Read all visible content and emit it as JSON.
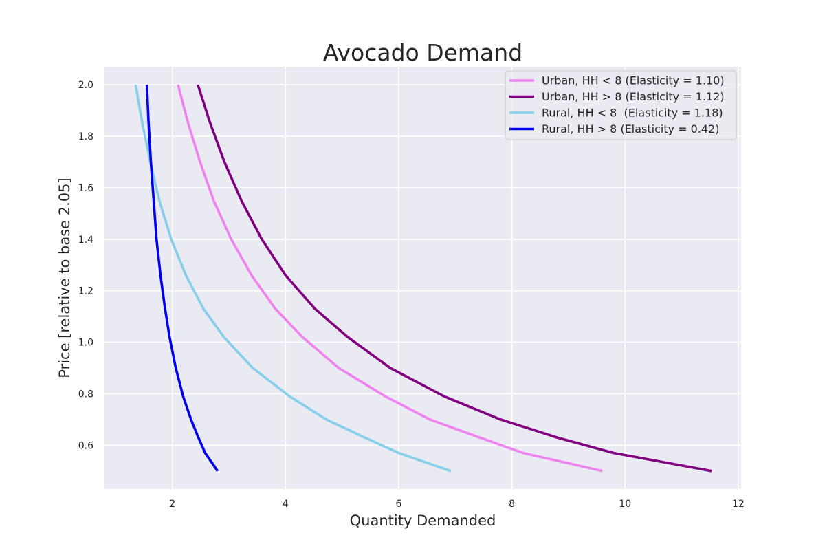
{
  "chart_data": {
    "type": "line",
    "title": "Avocado Demand",
    "xlabel": "Quantity Demanded",
    "ylabel": "Price [relative to base 2.05]",
    "xlim": [
      0.8,
      12.05
    ],
    "ylim": [
      0.43,
      2.07
    ],
    "xticks": [
      2,
      4,
      6,
      8,
      10,
      12
    ],
    "yticks": [
      0.6,
      0.8,
      1.0,
      1.2,
      1.4,
      1.6,
      1.8,
      2.0
    ],
    "xtick_labels": [
      "2",
      "4",
      "6",
      "8",
      "10",
      "12"
    ],
    "ytick_labels": [
      "0.6",
      "0.8",
      "1.0",
      "1.2",
      "1.4",
      "1.6",
      "1.8",
      "2.0"
    ],
    "grid": true,
    "background": "#eaeaf2",
    "legend_position": "top-right",
    "series": [
      {
        "name": "Urban, HH < 8 (Elasticity = 1.10)",
        "color": "#ee82ee",
        "points": [
          [
            2.1,
            2.0
          ],
          [
            2.28,
            1.85
          ],
          [
            2.49,
            1.7
          ],
          [
            2.73,
            1.55
          ],
          [
            3.04,
            1.4
          ],
          [
            3.4,
            1.26
          ],
          [
            3.82,
            1.13
          ],
          [
            4.3,
            1.02
          ],
          [
            4.94,
            0.9
          ],
          [
            5.76,
            0.79
          ],
          [
            6.55,
            0.7
          ],
          [
            7.43,
            0.63
          ],
          [
            8.2,
            0.57
          ],
          [
            9.6,
            0.5
          ]
        ]
      },
      {
        "name": "Urban, HH > 8 (Elasticity = 1.12)",
        "color": "#800080",
        "points": [
          [
            2.45,
            2.0
          ],
          [
            2.67,
            1.85
          ],
          [
            2.92,
            1.7
          ],
          [
            3.22,
            1.55
          ],
          [
            3.58,
            1.4
          ],
          [
            4.0,
            1.26
          ],
          [
            4.52,
            1.13
          ],
          [
            5.1,
            1.02
          ],
          [
            5.85,
            0.9
          ],
          [
            6.8,
            0.79
          ],
          [
            7.8,
            0.7
          ],
          [
            8.8,
            0.63
          ],
          [
            9.8,
            0.57
          ],
          [
            11.53,
            0.5
          ]
        ]
      },
      {
        "name": "Rural, HH < 8  (Elasticity = 1.18)",
        "color": "#87ceeb",
        "points": [
          [
            1.35,
            2.0
          ],
          [
            1.47,
            1.85
          ],
          [
            1.61,
            1.7
          ],
          [
            1.77,
            1.55
          ],
          [
            1.98,
            1.4
          ],
          [
            2.24,
            1.26
          ],
          [
            2.55,
            1.13
          ],
          [
            2.91,
            1.02
          ],
          [
            3.42,
            0.9
          ],
          [
            4.07,
            0.79
          ],
          [
            4.72,
            0.7
          ],
          [
            5.4,
            0.63
          ],
          [
            6.0,
            0.57
          ],
          [
            6.92,
            0.5
          ]
        ]
      },
      {
        "name": "Rural, HH > 8 (Elasticity = 0.42)",
        "color": "#0000ee",
        "points": [
          [
            1.55,
            2.0
          ],
          [
            1.58,
            1.85
          ],
          [
            1.62,
            1.7
          ],
          [
            1.67,
            1.55
          ],
          [
            1.72,
            1.4
          ],
          [
            1.79,
            1.26
          ],
          [
            1.87,
            1.13
          ],
          [
            1.95,
            1.02
          ],
          [
            2.06,
            0.9
          ],
          [
            2.19,
            0.79
          ],
          [
            2.33,
            0.7
          ],
          [
            2.46,
            0.63
          ],
          [
            2.58,
            0.57
          ],
          [
            2.8,
            0.5
          ]
        ]
      }
    ]
  }
}
